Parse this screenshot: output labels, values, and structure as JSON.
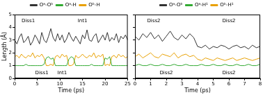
{
  "chart_data": [
    {
      "type": "line",
      "x_label": "Time (ps)",
      "y_label": "Length (Å)",
      "x": [
        0,
        0.5,
        1,
        1.5,
        2,
        2.5,
        3,
        3.5,
        4,
        4.5,
        5,
        5.5,
        6,
        6.5,
        7,
        7.5,
        8,
        8.5,
        9,
        9.5,
        10,
        10.5,
        11,
        11.5,
        12,
        12.5,
        13,
        13.5,
        14,
        14.5,
        15,
        15.5,
        16,
        16.5,
        17,
        17.5,
        18,
        18.5,
        19,
        19.5,
        20,
        20.5,
        21,
        21.5,
        22,
        22.5,
        23,
        23.5,
        24,
        24.5,
        25
      ],
      "series": [
        {
          "name": "Oᵃ-Oᵇ",
          "color": "#333333",
          "values": [
            3.0,
            2.7,
            3.2,
            3.5,
            2.8,
            3.0,
            3.3,
            2.6,
            2.9,
            3.4,
            3.1,
            2.7,
            3.6,
            3.0,
            2.8,
            3.3,
            3.9,
            3.2,
            2.9,
            3.5,
            3.0,
            3.4,
            2.8,
            3.1,
            3.6,
            3.2,
            2.9,
            3.3,
            3.0,
            2.7,
            3.4,
            3.1,
            3.8,
            3.0,
            2.9,
            3.3,
            3.5,
            2.8,
            3.1,
            3.4,
            3.0,
            3.6,
            2.9,
            3.2,
            3.0,
            3.5,
            2.8,
            3.3,
            3.1,
            3.4,
            3.0
          ]
        },
        {
          "name": "Oᵃ-H",
          "color": "#33aa33",
          "values": [
            1.0,
            1.0,
            1.0,
            1.0,
            1.0,
            1.1,
            1.0,
            1.0,
            1.0,
            1.0,
            1.0,
            1.0,
            1.0,
            1.1,
            1.6,
            1.7,
            1.5,
            1.6,
            1.0,
            1.0,
            1.0,
            1.0,
            1.0,
            1.0,
            1.5,
            1.7,
            1.6,
            1.0,
            1.0,
            1.0,
            1.0,
            1.0,
            1.0,
            1.0,
            1.1,
            1.0,
            1.0,
            1.0,
            1.0,
            1.0,
            1.6,
            1.5,
            1.7,
            1.0,
            1.0,
            1.0,
            1.0,
            1.0,
            1.0,
            1.0,
            1.0
          ]
        },
        {
          "name": "Oᵇ-H",
          "color": "#e8a000",
          "values": [
            1.7,
            1.8,
            1.6,
            1.9,
            1.7,
            1.6,
            1.8,
            1.7,
            2.0,
            1.6,
            1.8,
            1.7,
            1.9,
            1.6,
            1.0,
            1.0,
            1.1,
            1.0,
            1.7,
            1.8,
            1.6,
            1.9,
            1.7,
            1.8,
            1.0,
            1.0,
            1.1,
            1.8,
            1.6,
            1.7,
            1.9,
            1.7,
            1.6,
            1.8,
            1.7,
            2.0,
            1.6,
            1.8,
            1.7,
            1.9,
            1.0,
            1.1,
            1.0,
            1.7,
            1.8,
            1.6,
            1.9,
            1.7,
            1.8,
            1.6,
            1.7
          ]
        }
      ],
      "xlim": [
        0,
        25
      ],
      "xticks": [
        0,
        5,
        10,
        15,
        20,
        25
      ],
      "ylim": [
        0,
        5
      ],
      "yticks": [
        0,
        1,
        2,
        3,
        4,
        5
      ],
      "grid": false,
      "legend": "top",
      "annotations": [
        {
          "text": "Diss1",
          "x": 3,
          "y": 4.5
        },
        {
          "text": "Int1",
          "x": 15,
          "y": 4.5
        },
        {
          "text": "Diss1",
          "x": 6,
          "y": 0.4
        },
        {
          "text": "Int1",
          "x": 10.5,
          "y": 0.4
        }
      ]
    },
    {
      "type": "line",
      "x_label": "Time (ps)",
      "x": [
        0,
        0.25,
        0.5,
        0.75,
        1,
        1.25,
        1.5,
        1.75,
        2,
        2.25,
        2.5,
        2.75,
        3,
        3.25,
        3.5,
        3.75,
        4,
        4.25,
        4.5,
        4.75,
        5,
        5.25,
        5.5,
        5.75,
        6,
        6.25,
        6.5,
        6.75,
        7,
        7.25,
        7.5,
        7.75,
        8
      ],
      "series": [
        {
          "name": "Oᵃ-Oᵇ",
          "color": "#333333",
          "values": [
            3.3,
            3.0,
            3.5,
            3.2,
            3.6,
            3.1,
            3.4,
            2.9,
            3.3,
            3.7,
            3.2,
            3.0,
            3.4,
            3.1,
            3.5,
            3.2,
            2.5,
            2.4,
            2.6,
            2.3,
            2.5,
            2.4,
            2.6,
            2.5,
            2.3,
            2.5,
            2.6,
            2.4,
            2.5,
            2.3,
            2.6,
            2.4,
            2.5
          ]
        },
        {
          "name": "Oᵃ-H¹",
          "color": "#33aa33",
          "values": [
            1.0,
            1.1,
            1.0,
            1.0,
            1.1,
            1.0,
            1.0,
            1.1,
            1.0,
            1.0,
            1.1,
            1.0,
            1.0,
            1.1,
            1.0,
            1.0,
            1.0,
            1.1,
            1.0,
            1.0,
            1.1,
            1.0,
            1.0,
            1.1,
            1.0,
            1.0,
            1.1,
            1.0,
            1.0,
            1.1,
            1.0,
            1.0,
            1.1
          ]
        },
        {
          "name": "Oᵇ-H¹",
          "color": "#e8a000",
          "values": [
            1.7,
            1.9,
            1.6,
            1.8,
            2.0,
            1.7,
            1.6,
            1.9,
            1.8,
            1.7,
            2.0,
            1.6,
            1.8,
            1.9,
            1.7,
            1.8,
            1.5,
            1.4,
            1.6,
            1.5,
            1.4,
            1.6,
            1.5,
            1.4,
            1.5,
            1.6,
            1.4,
            1.5,
            1.6,
            1.5,
            1.4,
            1.5,
            1.6
          ]
        }
      ],
      "xlim": [
        0,
        8
      ],
      "xticks": [
        0,
        1,
        2,
        3,
        4,
        5,
        6,
        7,
        8
      ],
      "ylim": [
        0,
        5
      ],
      "yticks": [
        0,
        1,
        2,
        3,
        4,
        5
      ],
      "grid": false,
      "legend": "top",
      "tick_labels": "x",
      "annotations": [
        {
          "text": "Diss2",
          "x": 1.2,
          "y": 4.5
        },
        {
          "text": "Diss2",
          "x": 6,
          "y": 4.5
        },
        {
          "text": "Diss2",
          "x": 2,
          "y": 0.4
        },
        {
          "text": "Diss2",
          "x": 6,
          "y": 0.4
        }
      ]
    }
  ]
}
